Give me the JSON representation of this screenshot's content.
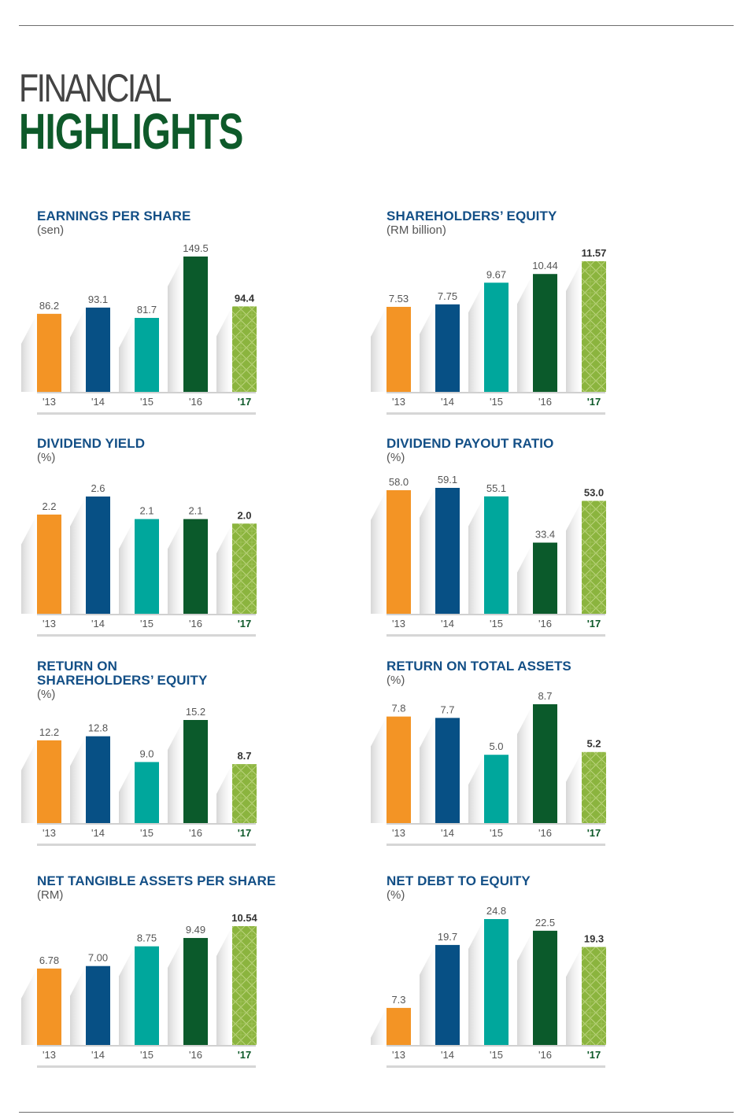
{
  "page": {
    "title_line1": "FINANCIAL",
    "title_line2": "HIGHLIGHTS"
  },
  "colors": {
    "bar_2013": "#f39425",
    "bar_2014": "#075085",
    "bar_2015": "#00a79c",
    "bar_2016": "#0b5a2b",
    "bar_2017": "#8bb43e",
    "title_blue": "#134f86",
    "highlight_green": "#0e5a2a"
  },
  "chart_data": [
    {
      "type": "bar",
      "title": "EARNINGS PER SHARE",
      "unit": "(sen)",
      "categories": [
        "'13",
        "'14",
        "'15",
        "'16",
        "'17"
      ],
      "values": [
        86.2,
        93.1,
        81.7,
        149.5,
        94.4
      ],
      "labels": [
        "86.2",
        "93.1",
        "81.7",
        "149.5",
        "94.4"
      ],
      "ylim": [
        0,
        149.5
      ]
    },
    {
      "type": "bar",
      "title": "SHAREHOLDERS’ EQUITY",
      "unit": "(RM billion)",
      "categories": [
        "'13",
        "'14",
        "'15",
        "'16",
        "'17"
      ],
      "values": [
        7.53,
        7.75,
        9.67,
        10.44,
        11.57
      ],
      "labels": [
        "7.53",
        "7.75",
        "9.67",
        "10.44",
        "11.57"
      ],
      "ylim": [
        0,
        11.57
      ]
    },
    {
      "type": "bar",
      "title": "DIVIDEND YIELD",
      "unit": "(%)",
      "categories": [
        "'13",
        "'14",
        "'15",
        "'16",
        "'17"
      ],
      "values": [
        2.2,
        2.6,
        2.1,
        2.1,
        2.0
      ],
      "labels": [
        "2.2",
        "2.6",
        "2.1",
        "2.1",
        "2.0"
      ],
      "ylim": [
        0,
        2.6
      ]
    },
    {
      "type": "bar",
      "title": "DIVIDEND PAYOUT RATIO",
      "unit": "(%)",
      "categories": [
        "'13",
        "'14",
        "'15",
        "'16",
        "'17"
      ],
      "values": [
        58.0,
        59.1,
        55.1,
        33.4,
        53.0
      ],
      "labels": [
        "58.0",
        "59.1",
        "55.1",
        "33.4",
        "53.0"
      ],
      "ylim": [
        0,
        59.1
      ]
    },
    {
      "type": "bar",
      "title": "RETURN ON SHAREHOLDERS’ EQUITY",
      "title_lines": [
        "RETURN ON",
        "SHAREHOLDERS’ EQUITY"
      ],
      "unit": "(%)",
      "categories": [
        "'13",
        "'14",
        "'15",
        "'16",
        "'17"
      ],
      "values": [
        12.2,
        12.8,
        9.0,
        15.2,
        8.7
      ],
      "labels": [
        "12.2",
        "12.8",
        "9.0",
        "15.2",
        "8.7"
      ],
      "ylim": [
        0,
        15.2
      ]
    },
    {
      "type": "bar",
      "title": "RETURN ON TOTAL ASSETS",
      "unit": "(%)",
      "categories": [
        "'13",
        "'14",
        "'15",
        "'16",
        "'17"
      ],
      "values": [
        7.8,
        7.7,
        5.0,
        8.7,
        5.2
      ],
      "labels": [
        "7.8",
        "7.7",
        "5.0",
        "8.7",
        "5.2"
      ],
      "ylim": [
        0,
        8.7
      ]
    },
    {
      "type": "bar",
      "title": "NET TANGIBLE ASSETS PER SHARE",
      "unit": "(RM)",
      "categories": [
        "'13",
        "'14",
        "'15",
        "'16",
        "'17"
      ],
      "values": [
        6.78,
        7.0,
        8.75,
        9.49,
        10.54
      ],
      "labels": [
        "6.78",
        "7.00",
        "8.75",
        "9.49",
        "10.54"
      ],
      "ylim": [
        0,
        10.54
      ]
    },
    {
      "type": "bar",
      "title": "NET DEBT TO EQUITY",
      "unit": "(%)",
      "categories": [
        "'13",
        "'14",
        "'15",
        "'16",
        "'17"
      ],
      "values": [
        7.3,
        19.7,
        24.8,
        22.5,
        19.3
      ],
      "labels": [
        "7.3",
        "19.7",
        "24.8",
        "22.5",
        "19.3"
      ],
      "ylim": [
        0,
        24.8
      ]
    }
  ]
}
